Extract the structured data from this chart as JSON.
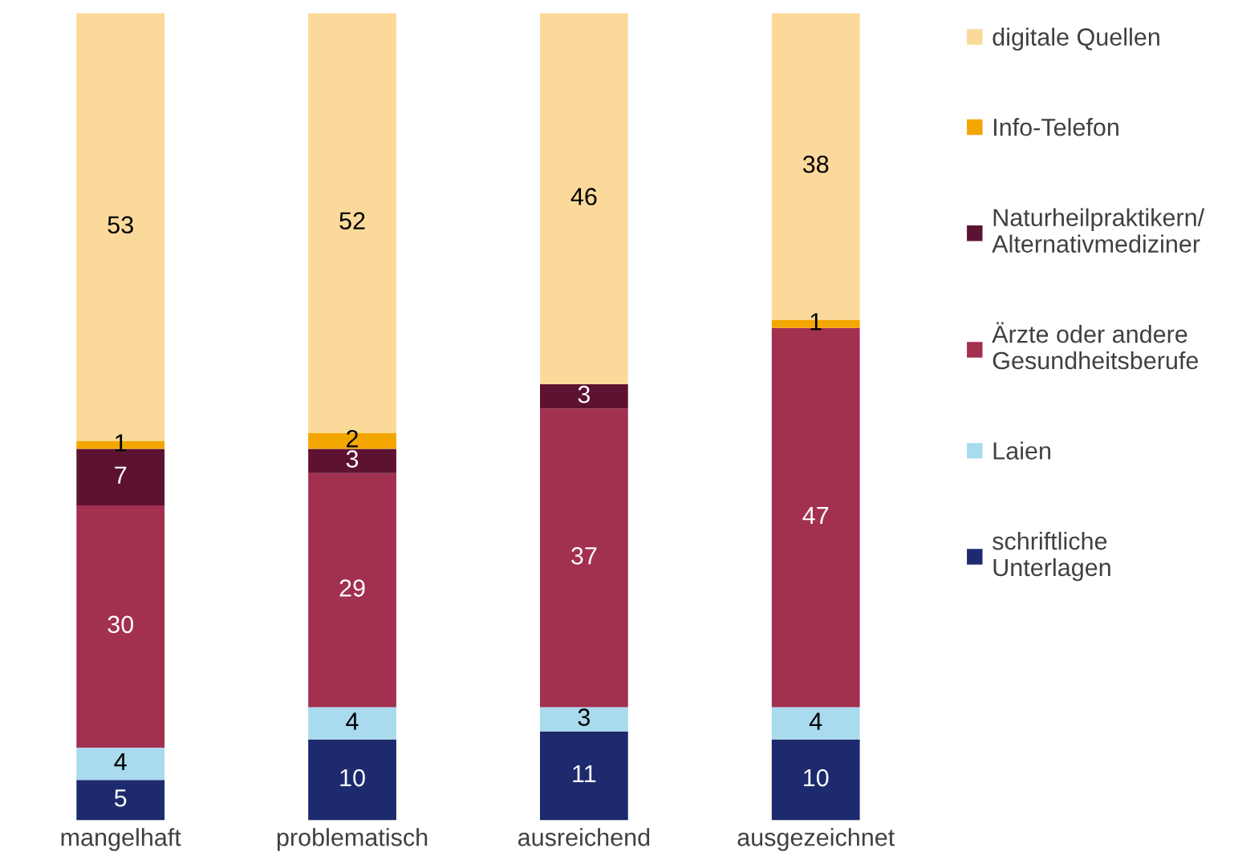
{
  "chart_data": {
    "type": "bar",
    "stacked": true,
    "data_labels": true,
    "legend": "right",
    "grid": false,
    "categories": [
      "mangelhaft",
      "problematisch",
      "ausreichend",
      "ausgezeichnet"
    ],
    "series": [
      {
        "name": "schriftliche\nUnterlagen",
        "color": "#1e2a6e",
        "values": [
          5,
          10,
          11,
          10
        ]
      },
      {
        "name": "Laien",
        "color": "#a9daee",
        "values": [
          4,
          4,
          3,
          4
        ]
      },
      {
        "name": "Ärzte oder andere\nGesundheitsberufe",
        "color": "#a2304f",
        "values": [
          30,
          29,
          37,
          47
        ]
      },
      {
        "name": "Naturheilpraktikern/\nAlternativmediziner",
        "color": "#5e1232",
        "values": [
          7,
          3,
          3,
          null
        ]
      },
      {
        "name": "Info-Telefon",
        "color": "#f4a600",
        "values": [
          1,
          2,
          null,
          1
        ]
      },
      {
        "name": "digitale Quellen",
        "color": "#fad99b",
        "values": [
          53,
          52,
          46,
          38
        ]
      }
    ]
  }
}
